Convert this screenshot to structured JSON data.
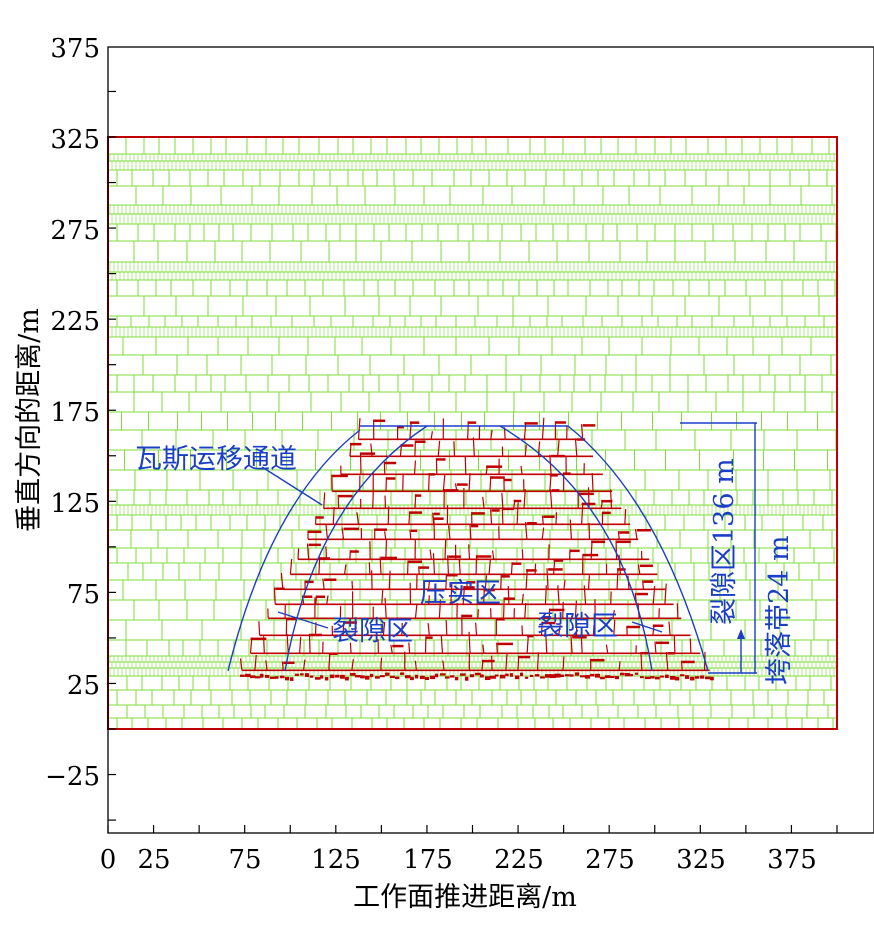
{
  "figure": {
    "xlabel": "工作面推进距离/m",
    "ylabel": "垂直方向的距离/m",
    "x_ticks": [
      "0",
      "25",
      "75",
      "125",
      "175",
      "225",
      "275",
      "325",
      "375"
    ],
    "y_ticks": [
      "375",
      "325",
      "275",
      "225",
      "175",
      "125",
      "75",
      "25",
      "−25"
    ]
  },
  "annotations": {
    "gas_channel": "瓦斯运移通道",
    "compaction_zone": "压实区",
    "fracture_zone_left": "裂隙区",
    "fracture_zone_right": "裂隙区",
    "fracture_zone_height": "裂隙区136 m",
    "caving_zone_height": "垮落带24 m"
  },
  "colors": {
    "intact_blocks": "#7ddc3a",
    "fractured_blocks": "#c00000",
    "model_boundary": "#c00000",
    "annotation": "#1a3ec8",
    "axis": "#000000"
  },
  "chart_data": {
    "type": "diagram",
    "x_range": [
      0,
      400
    ],
    "y_range": [
      -50,
      375
    ],
    "model_extent": {
      "x": [
        0,
        400
      ],
      "y": [
        0,
        325
      ]
    },
    "coal_seam_y": 30,
    "goaf_x": [
      68,
      328
    ],
    "fracture_zone_top_y": 166,
    "caving_zone_top_y": 54,
    "fracture_zone_height_m": 136,
    "caving_zone_height_m": 24
  }
}
